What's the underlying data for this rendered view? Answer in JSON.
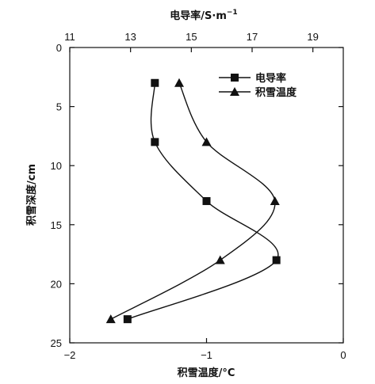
{
  "chart_data": {
    "type": "line",
    "title": "",
    "top_axis": {
      "label": "电导率/S·m",
      "label_sup": "−1",
      "range": [
        11,
        20
      ],
      "ticks": [
        11,
        13,
        15,
        17,
        19
      ],
      "tick_labels": [
        "11",
        "13",
        "15",
        "17",
        "19"
      ]
    },
    "bottom_axis": {
      "label": "积雪温度/°C",
      "range": [
        -2,
        0
      ],
      "ticks": [
        -2,
        -1,
        0
      ],
      "tick_labels": [
        "−2",
        "−1",
        "0"
      ]
    },
    "y_axis": {
      "label": "积雪深度/cm",
      "range": [
        0,
        25
      ],
      "inverted": true,
      "ticks": [
        0,
        5,
        10,
        15,
        20,
        25
      ],
      "tick_labels": [
        "0",
        "5",
        "10",
        "15",
        "20",
        "25"
      ]
    },
    "series": [
      {
        "name": "电导率",
        "axis": "top",
        "marker": "square",
        "points": [
          {
            "x": 13.8,
            "y": 3
          },
          {
            "x": 13.8,
            "y": 8
          },
          {
            "x": 15.5,
            "y": 13
          },
          {
            "x": 17.8,
            "y": 18
          },
          {
            "x": 12.9,
            "y": 23
          }
        ]
      },
      {
        "name": "积雪温度",
        "axis": "bottom",
        "marker": "triangle",
        "points": [
          {
            "x": -1.2,
            "y": 3
          },
          {
            "x": -1.0,
            "y": 8
          },
          {
            "x": -0.5,
            "y": 13
          },
          {
            "x": -0.9,
            "y": 18
          },
          {
            "x": -1.7,
            "y": 23
          }
        ]
      }
    ],
    "legend_position": "top-right",
    "grid": false
  }
}
